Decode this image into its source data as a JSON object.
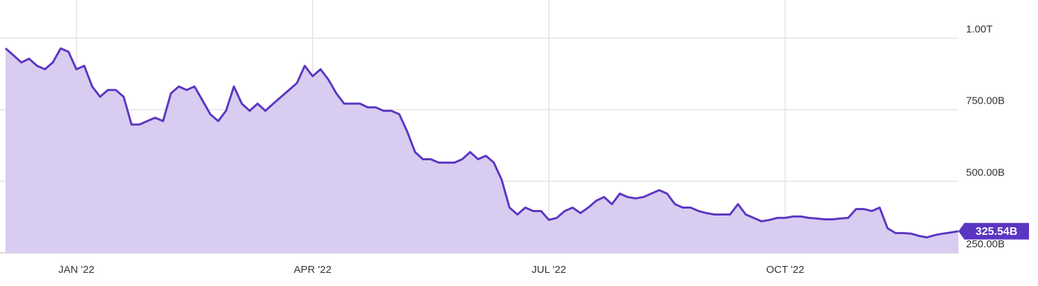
{
  "chart_data": {
    "type": "area",
    "categories": [
      null,
      null,
      null,
      null,
      null,
      null,
      null,
      null,
      null,
      "JAN '22",
      null,
      null,
      null,
      null,
      null,
      null,
      null,
      null,
      null,
      null,
      null,
      null,
      null,
      null,
      null,
      null,
      null,
      null,
      null,
      null,
      null,
      null,
      null,
      null,
      null,
      null,
      null,
      null,
      null,
      "APR '22",
      null,
      null,
      null,
      null,
      null,
      null,
      null,
      null,
      null,
      null,
      null,
      null,
      null,
      null,
      null,
      null,
      null,
      null,
      null,
      null,
      null,
      null,
      null,
      null,
      null,
      null,
      null,
      null,
      null,
      "JUL '22",
      null,
      null,
      null,
      null,
      null,
      null,
      null,
      null,
      null,
      null,
      null,
      null,
      null,
      null,
      null,
      null,
      null,
      null,
      null,
      null,
      null,
      null,
      null,
      null,
      null,
      null,
      null,
      null,
      null,
      "OCT '22",
      null,
      null,
      null,
      null,
      null,
      null,
      null,
      null,
      null,
      null,
      null,
      null,
      null,
      null,
      null,
      null,
      null,
      null,
      null,
      null,
      null,
      null
    ],
    "values": [
      964,
      940,
      915,
      928,
      903,
      891,
      915,
      964,
      952,
      891,
      903,
      831,
      795,
      819,
      819,
      795,
      698,
      698,
      710,
      722,
      710,
      807,
      831,
      819,
      831,
      783,
      734,
      710,
      746,
      831,
      771,
      746,
      771,
      746,
      771,
      795,
      819,
      843,
      903,
      867,
      891,
      855,
      807,
      771,
      771,
      771,
      758,
      758,
      746,
      746,
      734,
      674,
      602,
      577,
      577,
      565,
      565,
      565,
      577,
      602,
      577,
      589,
      565,
      505,
      408,
      384,
      408,
      396,
      396,
      365,
      372,
      396,
      408,
      389,
      408,
      432,
      445,
      420,
      457,
      445,
      440,
      445,
      457,
      469,
      457,
      420,
      408,
      408,
      396,
      389,
      384,
      384,
      384,
      420,
      384,
      372,
      360,
      365,
      372,
      372,
      377,
      377,
      372,
      370,
      367,
      367,
      370,
      372,
      403,
      403,
      396,
      408,
      336,
      319,
      319,
      317,
      309,
      304,
      312,
      317,
      321,
      325.54
    ],
    "value_labels": [
      null,
      null,
      null,
      null,
      null,
      null,
      null,
      null,
      null,
      null,
      null,
      null,
      null,
      null,
      null,
      null,
      null,
      null,
      null,
      null,
      null,
      null,
      null,
      null,
      null,
      null,
      null,
      null,
      null,
      null,
      null,
      null,
      null,
      null,
      null,
      null,
      null,
      null,
      null,
      null,
      null,
      null,
      null,
      null,
      null,
      null,
      null,
      null,
      null,
      null,
      null,
      null,
      null,
      null,
      null,
      null,
      null,
      null,
      null,
      null,
      null,
      null,
      null,
      null,
      null,
      null,
      null,
      null,
      null,
      null,
      null,
      null,
      null,
      null,
      null,
      null,
      null,
      null,
      null,
      null,
      null,
      null,
      null,
      null,
      null,
      null,
      null,
      null,
      null,
      null,
      null,
      null,
      null,
      null,
      null,
      null,
      null,
      null,
      null,
      null,
      null,
      null,
      null,
      null,
      null,
      null,
      null,
      null,
      null,
      null,
      null,
      null,
      null,
      null,
      null,
      null,
      null,
      null,
      null,
      null,
      null,
      "325.54B"
    ],
    "color": "#5b36c2",
    "fill_color": "#d8ccf0",
    "ylim": [
      250,
      1133
    ],
    "yticks": [
      {
        "value": 250,
        "label": "250.00B"
      },
      {
        "value": 500,
        "label": "500.00B"
      },
      {
        "value": 750,
        "label": "750.00B"
      },
      {
        "value": 1000,
        "label": "1.00T"
      }
    ],
    "grid": true
  }
}
